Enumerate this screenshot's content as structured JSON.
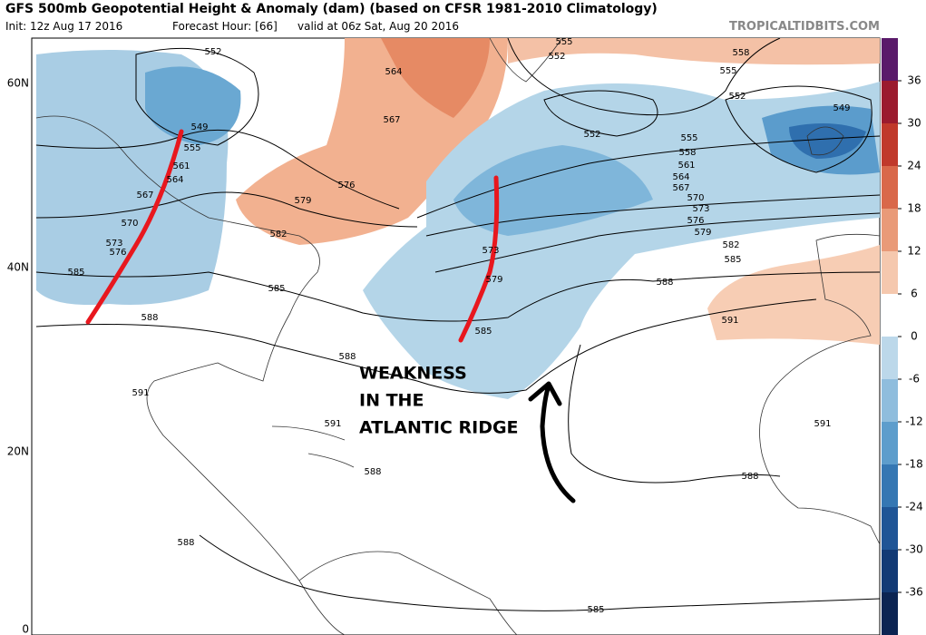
{
  "header": {
    "title": "GFS 500mb Geopotential Height & Anomaly (dam) (based on CFSR 1981-2010 Climatology)",
    "init": "Init: 12z Aug 17 2016",
    "forecast_hour": "Forecast Hour: [66]",
    "valid": "valid at 06z Sat, Aug 20 2016",
    "watermark": "TROPICALTIDBITS.COM"
  },
  "map": {
    "latitude_labels": [
      "60N",
      "40N",
      "20N",
      "0"
    ],
    "contour_labels": [
      552,
      549,
      555,
      561,
      564,
      567,
      570,
      573,
      576,
      585,
      588,
      591,
      588,
      591,
      588,
      588,
      585,
      582,
      579,
      576,
      567,
      564,
      555,
      552,
      558,
      555,
      552,
      549,
      552,
      555,
      558,
      561,
      564,
      567,
      570,
      573,
      576,
      579,
      582,
      585,
      588,
      591,
      591,
      588,
      585,
      585,
      579,
      573
    ],
    "annotation": [
      "WEAKNESS",
      "IN THE",
      "ATLANTIC RIDGE"
    ]
  },
  "colorbar": {
    "ticks": [
      36,
      30,
      24,
      18,
      12,
      6,
      0,
      -6,
      -12,
      -18,
      -24,
      -30,
      -36
    ]
  }
}
